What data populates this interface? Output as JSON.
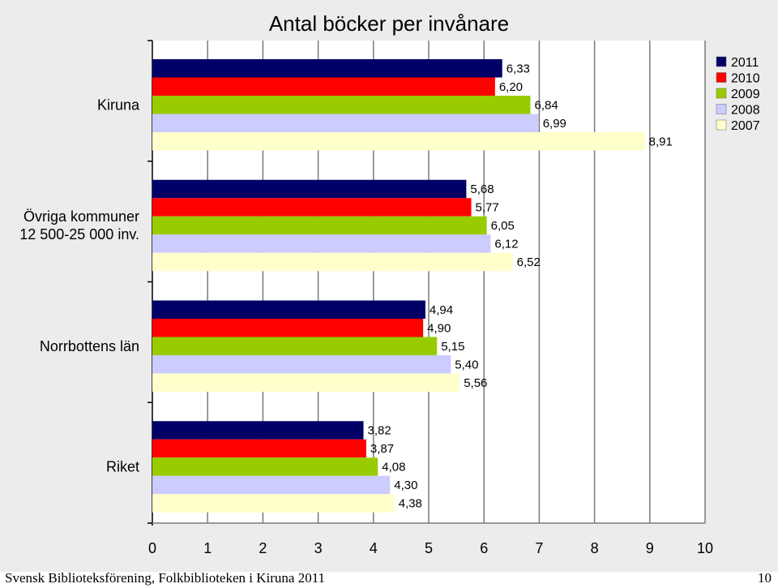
{
  "chart_data": {
    "type": "bar",
    "orientation": "horizontal",
    "title": "Antal böcker per invånare",
    "categories": [
      "Kiruna",
      "Övriga kommuner 12 500-25 000 inv.",
      "Norrbottens län",
      "Riket"
    ],
    "category_lines": [
      [
        "Kiruna"
      ],
      [
        "Övriga kommuner",
        "12 500-25 000 inv."
      ],
      [
        "Norrbottens län"
      ],
      [
        "Riket"
      ]
    ],
    "series": [
      {
        "name": "2011",
        "color": "#000066",
        "values": [
          6.33,
          5.68,
          4.94,
          3.82
        ],
        "labels": [
          "6,33",
          "5,68",
          "4,94",
          "3,82"
        ]
      },
      {
        "name": "2010",
        "color": "#ff0000",
        "values": [
          6.2,
          5.77,
          4.9,
          3.87
        ],
        "labels": [
          "6,20",
          "5,77",
          "4,90",
          "3,87"
        ]
      },
      {
        "name": "2009",
        "color": "#99cc00",
        "values": [
          6.84,
          6.05,
          5.15,
          4.08
        ],
        "labels": [
          "6,84",
          "6,05",
          "5,15",
          "4,08"
        ]
      },
      {
        "name": "2008",
        "color": "#ccccff",
        "values": [
          6.99,
          6.12,
          5.4,
          4.3
        ],
        "labels": [
          "6,99",
          "6,12",
          "5,40",
          "4,30"
        ]
      },
      {
        "name": "2007",
        "color": "#ffffcc",
        "values": [
          8.91,
          6.52,
          5.56,
          4.38
        ],
        "labels": [
          "8,91",
          "6,52",
          "5,56",
          "4,38"
        ]
      }
    ],
    "xlim": [
      0,
      10
    ],
    "xticks": [
      "0",
      "1",
      "2",
      "3",
      "4",
      "5",
      "6",
      "7",
      "8",
      "9",
      "10"
    ],
    "grid": true,
    "legend_position": "top-right",
    "legend_order": [
      "2011",
      "2010",
      "2009",
      "2008",
      "2007"
    ]
  },
  "footer": {
    "text": "Svensk Biblioteksförening, Folkbiblioteken i Kiruna 2011",
    "page": "10"
  }
}
